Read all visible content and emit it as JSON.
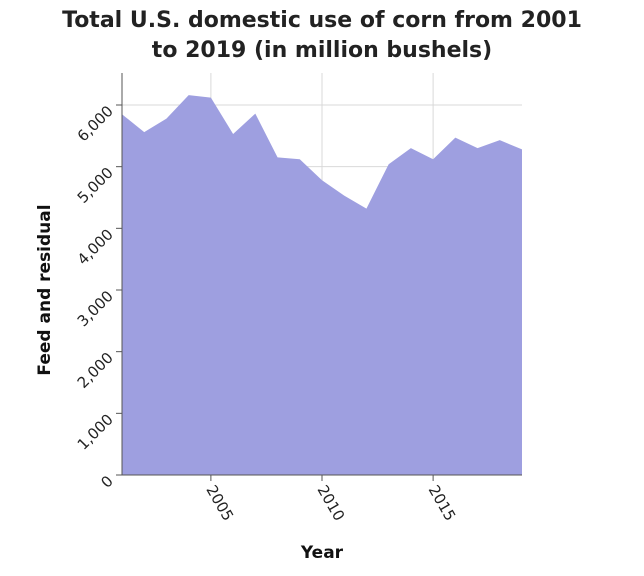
{
  "chart_data": {
    "type": "area",
    "title_lines": [
      "Total U.S. domestic use of corn from 2001",
      "to 2019 (in million bushels)"
    ],
    "xlabel": "Year",
    "ylabel": "Feed and residual",
    "x": [
      2001,
      2002,
      2003,
      2004,
      2005,
      2006,
      2007,
      2008,
      2009,
      2010,
      2011,
      2012,
      2013,
      2014,
      2015,
      2016,
      2017,
      2018,
      2019
    ],
    "series": [
      {
        "values": [
          5850,
          5560,
          5780,
          6160,
          6120,
          5530,
          5860,
          5150,
          5120,
          4780,
          4530,
          4320,
          5040,
          5300,
          5120,
          5470,
          5300,
          5430,
          5280
        ]
      }
    ],
    "xlim": [
      2001,
      2019
    ],
    "ylim": [
      0,
      6000
    ],
    "x_ticks": [
      2005,
      2010,
      2015
    ],
    "x_tick_labels": [
      "2005",
      "2010",
      "2015"
    ],
    "y_ticks": [
      0,
      1000,
      2000,
      3000,
      4000,
      5000,
      6000
    ],
    "y_tick_labels": [
      "0",
      "1,000",
      "2,000",
      "3,000",
      "4,000",
      "5,000",
      "6,000"
    ],
    "grid": true,
    "fill_color": "#9e9fe0",
    "background": "#ffffff"
  }
}
